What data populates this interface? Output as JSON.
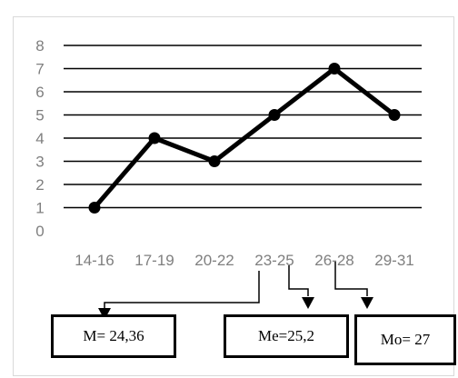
{
  "chart_data": {
    "type": "line",
    "categories": [
      "14-16",
      "17-19",
      "20-22",
      "23-25",
      "26-28",
      "29-31"
    ],
    "series": [
      {
        "values": [
          1,
          4,
          3,
          5,
          7,
          5
        ]
      }
    ],
    "y_ticks": [
      "0",
      "1",
      "2",
      "3",
      "4",
      "5",
      "6",
      "7",
      "8"
    ],
    "ylim": [
      0,
      8
    ],
    "grid": true,
    "annotations": [
      "M= 24,36",
      "Me=25,2",
      "Mo= 27"
    ],
    "line_color": "#000000",
    "grid_color": "#000000",
    "tick_color": "#7f7f7f"
  }
}
